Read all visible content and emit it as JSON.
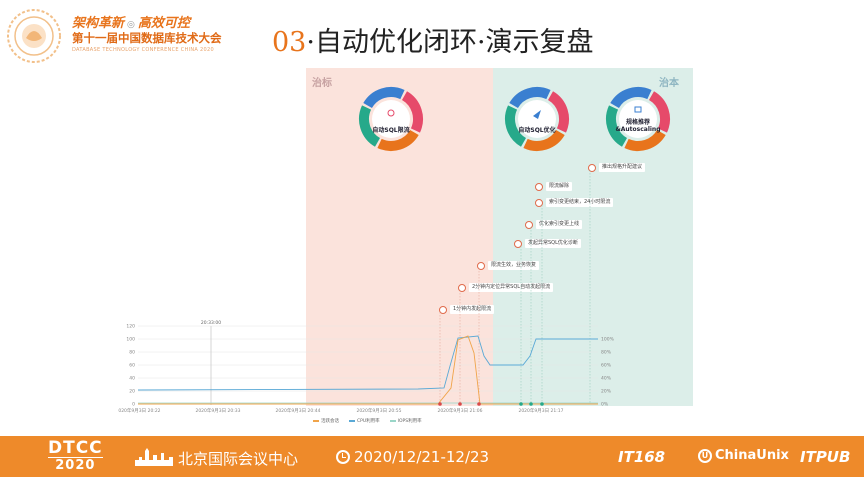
{
  "header": {
    "slogan_left": "架构革新",
    "slogan_right": "高效可控",
    "conference_name": "第十一届中国数据库技术大会",
    "conference_en": "DATABASE TECHNOLOGY CONFERENCE CHINA 2020",
    "title_number": "03",
    "title_text": "·自动优化闭环·演示复盘"
  },
  "zones": {
    "left_label": "治标",
    "right_label": "治本"
  },
  "cycles": [
    {
      "label": "自动SQL限流",
      "colors": [
        "#3a7fd0",
        "#e64a6a",
        "#e8741c",
        "#26a98a"
      ]
    },
    {
      "label": "自动SQL优化",
      "colors": [
        "#3a7fd0",
        "#e64a6a",
        "#e8741c",
        "#26a98a"
      ]
    },
    {
      "label": "规格推荐\n&Autoscaling",
      "colors": [
        "#3a7fd0",
        "#e64a6a",
        "#e8741c",
        "#26a98a"
      ]
    }
  ],
  "events": [
    "1分钟内发起限流",
    "2分钟内定位异常SQL自动发起限流",
    "限流生效，业务恢复",
    "发起异常SQL优化诊断",
    "优化索引变更上线",
    "索引变更结束，24小时限流",
    "限流解除",
    "推出规格升配建议"
  ],
  "chart_data": {
    "type": "line",
    "x_tick_labels": [
      "2020年9月3日 20:22",
      "2020年9月3日 20:33",
      "2020年9月3日 20:44",
      "2020年9月3日 20:55",
      "2020年9月3日 21:06",
      "2020年9月3日 21:17"
    ],
    "y_left_ticks": [
      "0",
      "20",
      "40",
      "60",
      "80",
      "100",
      "120"
    ],
    "y_right_ticks": [
      "0%",
      "20%",
      "40%",
      "60%",
      "80%",
      "100%"
    ],
    "y_left_lim": [
      0,
      120
    ],
    "y_right_lim": [
      0,
      100
    ],
    "marker_label": "20:33:00",
    "bottom_left_value": "1",
    "series": [
      {
        "name": "活跃会话",
        "color": "#f0a44a"
      },
      {
        "name": "CPU利用率",
        "color": "#5aa9d6"
      },
      {
        "name": "IOPS利用率",
        "color": "#9ad6c8"
      }
    ],
    "grid": true
  },
  "footer": {
    "dtcc_top": "DTCC",
    "dtcc_year": "2020",
    "venue": "北京国际会议中心",
    "date": "2020/12/21-12/23",
    "sponsor1": "IT168",
    "sponsor2": "ChinaUnix",
    "sponsor3": "ITPUB"
  }
}
